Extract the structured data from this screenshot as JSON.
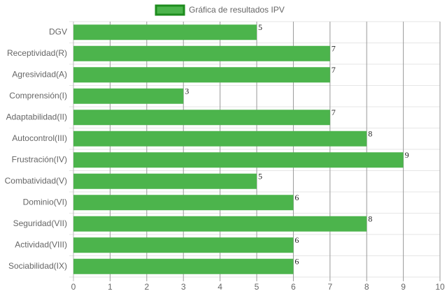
{
  "chart_data": {
    "type": "bar",
    "orientation": "horizontal",
    "legend": "top",
    "categories": [
      "DGV",
      "Receptividad(R)",
      "Agresividad(A)",
      "Comprensión(I)",
      "Adaptabilidad(II)",
      "Autocontrol(III)",
      "Frustración(IV)",
      "Combatividad(V)",
      "Dominio(VI)",
      "Seguridad(VII)",
      "Actividad(VIII)",
      "Sociabilidad(IX)"
    ],
    "series": [
      {
        "name": "Gráfica de resultados IPV",
        "color": "#4cb44c",
        "border_color": "#1e8c1e",
        "values": [
          5,
          7,
          7,
          3,
          7,
          8,
          9,
          5,
          6,
          8,
          6,
          6
        ]
      }
    ],
    "xlim": [
      0,
      10
    ],
    "xticks": [
      0,
      1,
      2,
      3,
      4,
      5,
      6,
      7,
      8,
      9,
      10
    ],
    "grid": true
  }
}
